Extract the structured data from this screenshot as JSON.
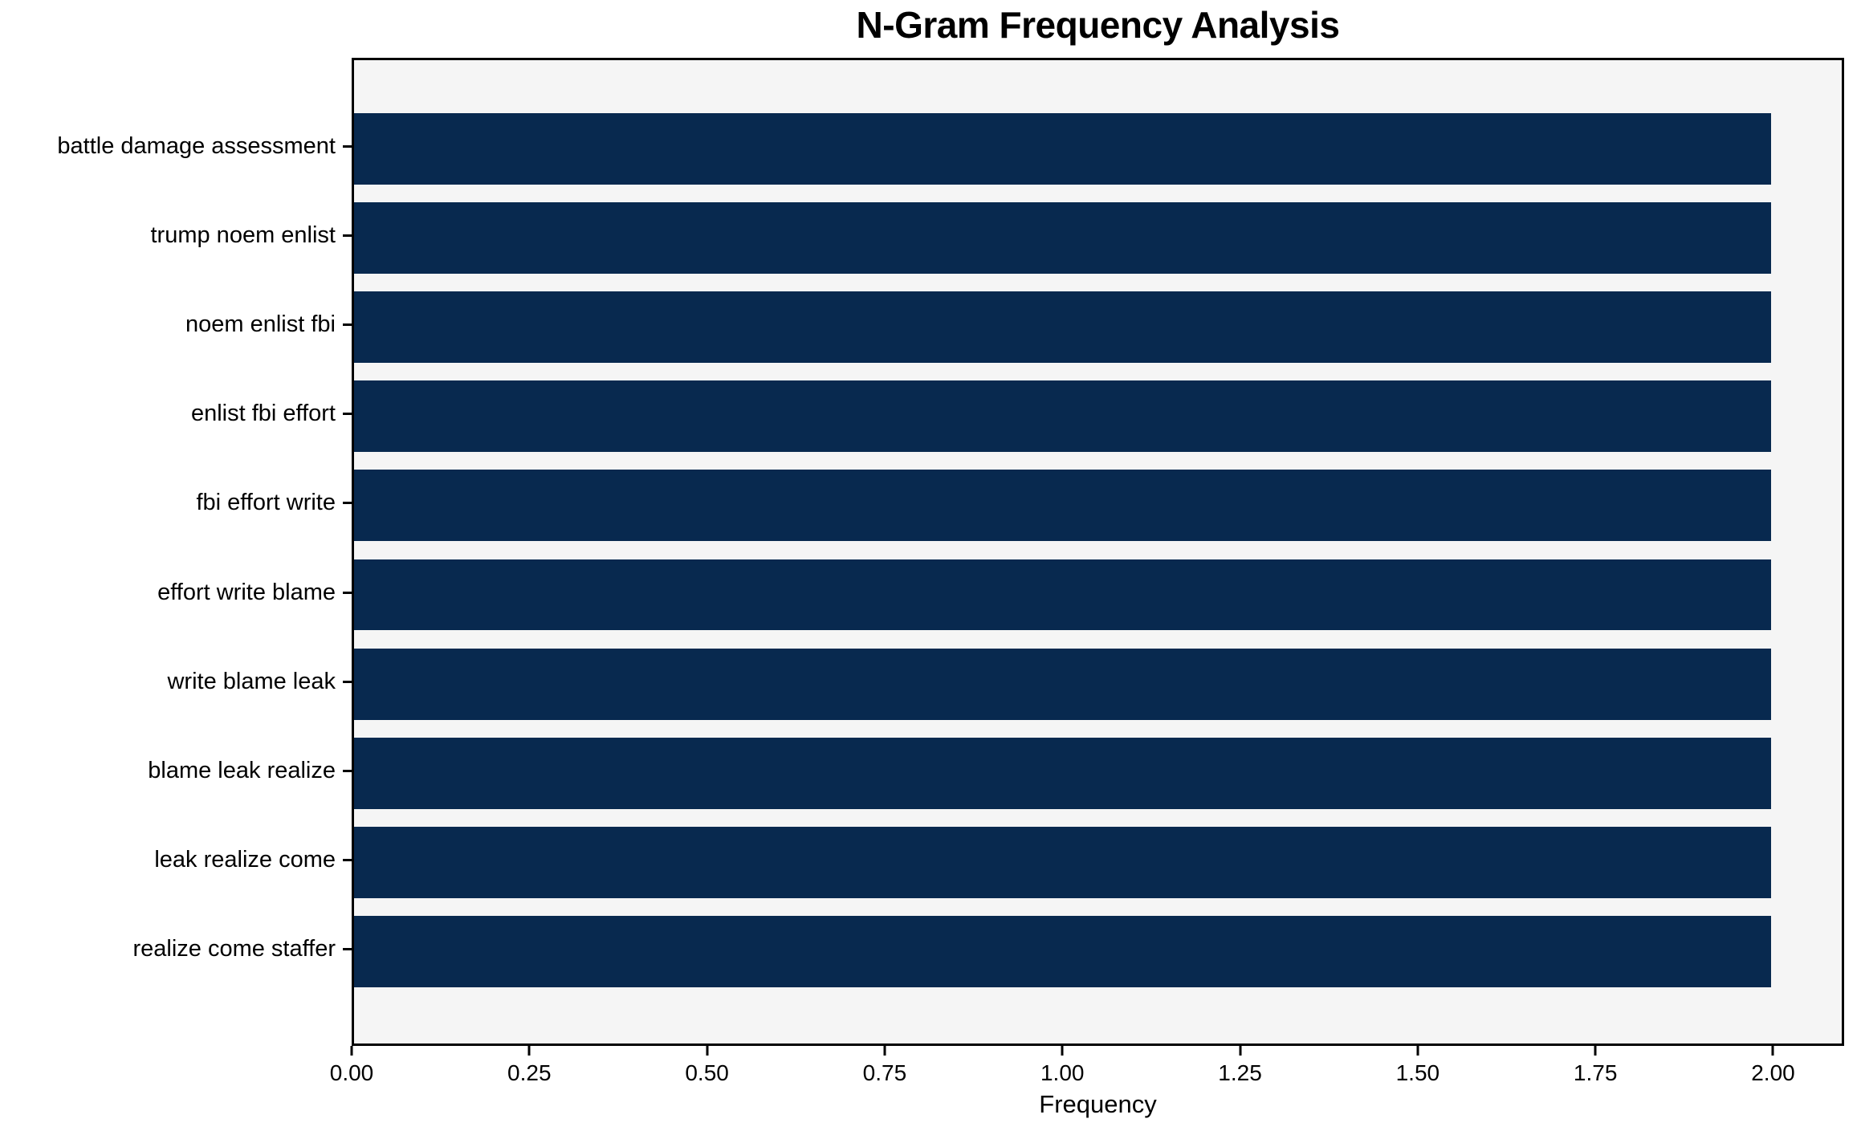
{
  "chart_data": {
    "type": "bar",
    "orientation": "horizontal",
    "title": "N-Gram Frequency Analysis",
    "xlabel": "Frequency",
    "ylabel": "",
    "categories": [
      "battle damage assessment",
      "trump noem enlist",
      "noem enlist fbi",
      "enlist fbi effort",
      "fbi effort write",
      "effort write blame",
      "write blame leak",
      "blame leak realize",
      "leak realize come",
      "realize come staffer"
    ],
    "values": [
      2,
      2,
      2,
      2,
      2,
      2,
      2,
      2,
      2,
      2
    ],
    "xlim": [
      0,
      2.1
    ],
    "xticks": [
      0.0,
      0.25,
      0.5,
      0.75,
      1.0,
      1.25,
      1.5,
      1.75,
      2.0
    ],
    "xtick_labels": [
      "0.00",
      "0.25",
      "0.50",
      "0.75",
      "1.00",
      "1.25",
      "1.50",
      "1.75",
      "2.00"
    ],
    "bar_height_fraction": 0.8,
    "grid": false,
    "legend": null,
    "colors": {
      "bar": "#08294f",
      "plot_background": "#f5f5f5",
      "figure_background": "#ffffff",
      "spine": "#000000",
      "text": "#000000"
    }
  }
}
